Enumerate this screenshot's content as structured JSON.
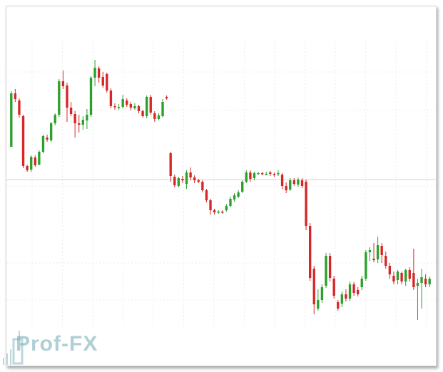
{
  "chart_data": {
    "type": "candlestick",
    "title": "",
    "xlabel": "",
    "ylabel": "",
    "grid": true,
    "ylim": [
      0,
      452
    ],
    "colors": {
      "up": "#2ca02c",
      "down": "#d62728",
      "grid": "#ececec",
      "level": "#d4d4d4"
    },
    "levels": [
      209
    ],
    "candles": [
      {
        "o": 255,
        "c": 330,
        "h": 333,
        "l": 255
      },
      {
        "o": 330,
        "c": 322,
        "h": 336,
        "l": 318
      },
      {
        "o": 320,
        "c": 300,
        "h": 323,
        "l": 296
      },
      {
        "o": 298,
        "c": 228,
        "h": 300,
        "l": 225
      },
      {
        "o": 228,
        "c": 222,
        "h": 230,
        "l": 220
      },
      {
        "o": 223,
        "c": 241,
        "h": 243,
        "l": 220
      },
      {
        "o": 240,
        "c": 229,
        "h": 243,
        "l": 227
      },
      {
        "o": 230,
        "c": 248,
        "h": 250,
        "l": 229
      },
      {
        "o": 248,
        "c": 270,
        "h": 272,
        "l": 246
      },
      {
        "o": 268,
        "c": 265,
        "h": 272,
        "l": 262
      },
      {
        "o": 264,
        "c": 288,
        "h": 290,
        "l": 262
      },
      {
        "o": 288,
        "c": 300,
        "h": 302,
        "l": 285
      },
      {
        "o": 300,
        "c": 347,
        "h": 350,
        "l": 297
      },
      {
        "o": 347,
        "c": 340,
        "h": 362,
        "l": 336
      },
      {
        "o": 341,
        "c": 310,
        "h": 345,
        "l": 290
      },
      {
        "o": 310,
        "c": 301,
        "h": 318,
        "l": 298
      },
      {
        "o": 301,
        "c": 288,
        "h": 305,
        "l": 268
      },
      {
        "o": 288,
        "c": 286,
        "h": 300,
        "l": 275
      },
      {
        "o": 286,
        "c": 293,
        "h": 298,
        "l": 279
      },
      {
        "o": 292,
        "c": 300,
        "h": 308,
        "l": 280
      },
      {
        "o": 300,
        "c": 352,
        "h": 354,
        "l": 297
      },
      {
        "o": 352,
        "c": 366,
        "h": 377,
        "l": 340
      },
      {
        "o": 365,
        "c": 352,
        "h": 368,
        "l": 345
      },
      {
        "o": 353,
        "c": 341,
        "h": 360,
        "l": 338
      },
      {
        "o": 357,
        "c": 334,
        "h": 359,
        "l": 331
      },
      {
        "o": 334,
        "c": 312,
        "h": 337,
        "l": 309
      },
      {
        "o": 312,
        "c": 311,
        "h": 316,
        "l": 307
      },
      {
        "o": 310,
        "c": 311,
        "h": 315,
        "l": 307
      },
      {
        "o": 311,
        "c": 322,
        "h": 328,
        "l": 309
      },
      {
        "o": 320,
        "c": 314,
        "h": 323,
        "l": 311
      },
      {
        "o": 315,
        "c": 310,
        "h": 318,
        "l": 306
      },
      {
        "o": 309,
        "c": 312,
        "h": 316,
        "l": 307
      },
      {
        "o": 312,
        "c": 305,
        "h": 314,
        "l": 302
      },
      {
        "o": 305,
        "c": 298,
        "h": 307,
        "l": 296
      },
      {
        "o": 298,
        "c": 325,
        "h": 327,
        "l": 295
      },
      {
        "o": 325,
        "c": 303,
        "h": 328,
        "l": 300
      },
      {
        "o": 302,
        "c": 294,
        "h": 305,
        "l": 290
      },
      {
        "o": 294,
        "c": 299,
        "h": 302,
        "l": 292
      },
      {
        "o": 298,
        "c": 318,
        "h": 322,
        "l": 296
      },
      {
        "o": 325,
        "c": 323,
        "h": 327,
        "l": 321
      },
      {
        "o": 246,
        "c": 214,
        "h": 248,
        "l": 206
      },
      {
        "o": 213,
        "c": 201,
        "h": 216,
        "l": 198
      },
      {
        "o": 200,
        "c": 211,
        "h": 213,
        "l": 198
      },
      {
        "o": 210,
        "c": 208,
        "h": 214,
        "l": 204
      },
      {
        "o": 203,
        "c": 219,
        "h": 222,
        "l": 196
      },
      {
        "o": 219,
        "c": 212,
        "h": 226,
        "l": 208
      },
      {
        "o": 212,
        "c": 208,
        "h": 215,
        "l": 204
      },
      {
        "o": 208,
        "c": 206,
        "h": 210,
        "l": 204
      },
      {
        "o": 206,
        "c": 194,
        "h": 208,
        "l": 191
      },
      {
        "o": 194,
        "c": 180,
        "h": 196,
        "l": 177
      },
      {
        "o": 180,
        "c": 166,
        "h": 182,
        "l": 160
      },
      {
        "o": 166,
        "c": 163,
        "h": 168,
        "l": 160
      },
      {
        "o": 163,
        "c": 164,
        "h": 166,
        "l": 161
      },
      {
        "o": 164,
        "c": 163,
        "h": 166,
        "l": 161
      },
      {
        "o": 166,
        "c": 172,
        "h": 175,
        "l": 164
      },
      {
        "o": 172,
        "c": 182,
        "h": 185,
        "l": 170
      },
      {
        "o": 181,
        "c": 187,
        "h": 190,
        "l": 178
      },
      {
        "o": 185,
        "c": 191,
        "h": 194,
        "l": 183
      },
      {
        "o": 192,
        "c": 206,
        "h": 208,
        "l": 190
      },
      {
        "o": 206,
        "c": 219,
        "h": 222,
        "l": 204
      },
      {
        "o": 219,
        "c": 210,
        "h": 222,
        "l": 206
      },
      {
        "o": 211,
        "c": 218,
        "h": 220,
        "l": 208
      },
      {
        "o": 218,
        "c": 218,
        "h": 220,
        "l": 216
      },
      {
        "o": 218,
        "c": 217,
        "h": 220,
        "l": 215
      },
      {
        "o": 217,
        "c": 217,
        "h": 220,
        "l": 215
      },
      {
        "o": 219,
        "c": 217,
        "h": 221,
        "l": 214
      },
      {
        "o": 217,
        "c": 216,
        "h": 219,
        "l": 213
      },
      {
        "o": 217,
        "c": 218,
        "h": 222,
        "l": 214
      },
      {
        "o": 216,
        "c": 200,
        "h": 218,
        "l": 196
      },
      {
        "o": 200,
        "c": 194,
        "h": 205,
        "l": 190
      },
      {
        "o": 195,
        "c": 208,
        "h": 211,
        "l": 193
      },
      {
        "o": 208,
        "c": 203,
        "h": 211,
        "l": 200
      },
      {
        "o": 202,
        "c": 209,
        "h": 212,
        "l": 199
      },
      {
        "o": 208,
        "c": 200,
        "h": 211,
        "l": 197
      },
      {
        "o": 206,
        "c": 144,
        "h": 209,
        "l": 138
      },
      {
        "o": 144,
        "c": 71,
        "h": 148,
        "l": 67
      },
      {
        "o": 84,
        "c": 34,
        "h": 88,
        "l": 20
      },
      {
        "o": 28,
        "c": 40,
        "h": 55,
        "l": 25
      },
      {
        "o": 40,
        "c": 58,
        "h": 62,
        "l": 36
      },
      {
        "o": 60,
        "c": 102,
        "h": 106,
        "l": 57
      },
      {
        "o": 102,
        "c": 71,
        "h": 106,
        "l": 66
      },
      {
        "o": 70,
        "c": 46,
        "h": 74,
        "l": 42
      },
      {
        "o": 37,
        "c": 28,
        "h": 40,
        "l": 25
      },
      {
        "o": 35,
        "c": 48,
        "h": 52,
        "l": 30
      },
      {
        "o": 48,
        "c": 42,
        "h": 55,
        "l": 38
      },
      {
        "o": 42,
        "c": 62,
        "h": 66,
        "l": 39
      },
      {
        "o": 62,
        "c": 50,
        "h": 65,
        "l": 46
      },
      {
        "o": 54,
        "c": 48,
        "h": 58,
        "l": 45
      },
      {
        "o": 58,
        "c": 70,
        "h": 74,
        "l": 54
      },
      {
        "o": 70,
        "c": 107,
        "h": 110,
        "l": 67
      },
      {
        "o": 107,
        "c": 110,
        "h": 114,
        "l": 95
      },
      {
        "o": 98,
        "c": 96,
        "h": 120,
        "l": 93
      },
      {
        "o": 97,
        "c": 117,
        "h": 129,
        "l": 92
      },
      {
        "o": 116,
        "c": 103,
        "h": 120,
        "l": 92
      },
      {
        "o": 102,
        "c": 88,
        "h": 108,
        "l": 84
      },
      {
        "o": 88,
        "c": 76,
        "h": 92,
        "l": 70
      },
      {
        "o": 74,
        "c": 66,
        "h": 80,
        "l": 62
      },
      {
        "o": 68,
        "c": 80,
        "h": 82,
        "l": 62
      },
      {
        "o": 78,
        "c": 66,
        "h": 80,
        "l": 62
      },
      {
        "o": 66,
        "c": 82,
        "h": 84,
        "l": 60
      },
      {
        "o": 82,
        "c": 70,
        "h": 86,
        "l": 66
      },
      {
        "o": 78,
        "c": 58,
        "h": 112,
        "l": 54
      },
      {
        "o": 60,
        "c": 64,
        "h": 70,
        "l": 12
      },
      {
        "o": 64,
        "c": 72,
        "h": 84,
        "l": 28
      },
      {
        "o": 70,
        "c": 62,
        "h": 76,
        "l": 58
      },
      {
        "o": 62,
        "c": 70,
        "h": 73,
        "l": 58
      }
    ]
  },
  "logo": {
    "text": "Prof-FX",
    "color": "#6fa8b5"
  }
}
